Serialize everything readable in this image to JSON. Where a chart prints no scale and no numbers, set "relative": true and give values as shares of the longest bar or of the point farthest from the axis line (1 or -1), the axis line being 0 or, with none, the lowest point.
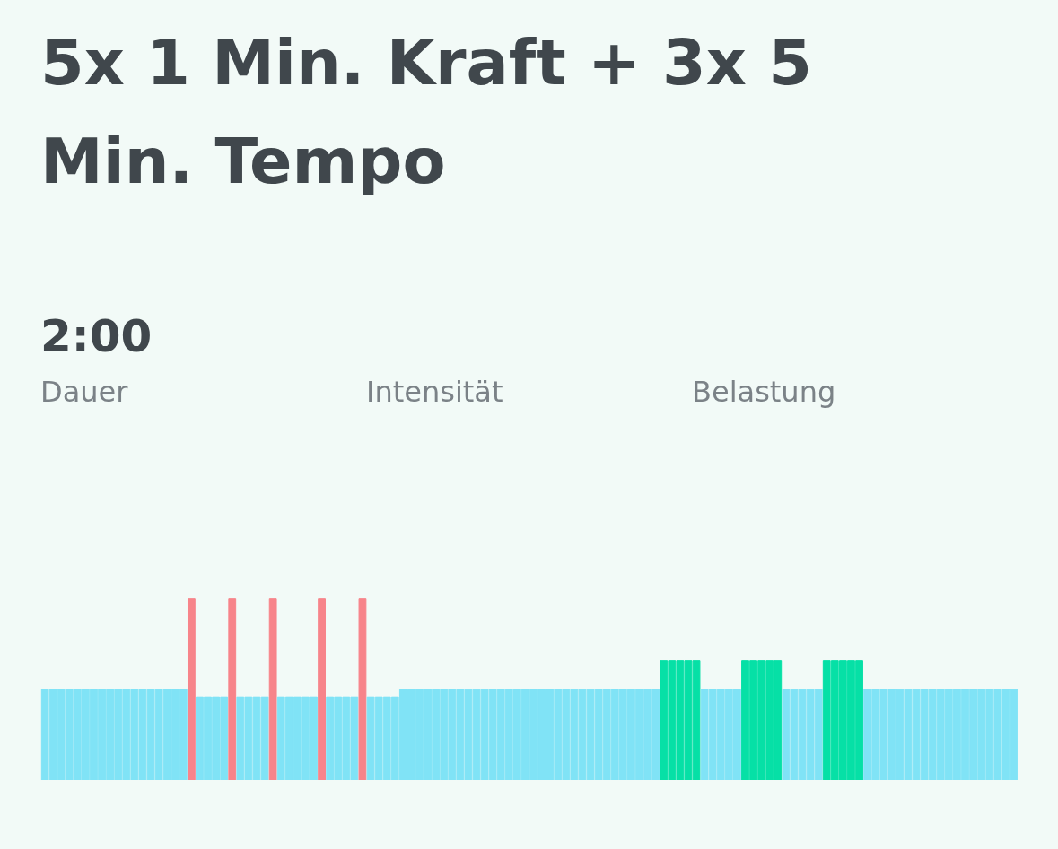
{
  "chart_data": {
    "type": "bar",
    "relative": true,
    "title": "5x 1 Min. Kraft + 3x 5 Min. Tempo",
    "annotations": [
      "2:00",
      "Dauer",
      "Intensität",
      "Belastung"
    ],
    "categories": [
      null,
      null,
      null,
      null,
      null,
      null,
      null,
      null,
      null,
      null,
      null,
      null,
      null,
      null,
      null,
      null,
      null,
      null,
      null,
      null,
      null,
      null,
      null,
      null,
      null,
      null,
      null,
      null,
      null,
      null,
      null,
      null,
      null,
      null,
      null,
      null,
      null,
      null,
      null,
      null,
      null,
      null,
      null,
      null,
      null,
      null,
      null,
      null,
      null,
      null,
      null,
      null,
      null,
      null,
      null,
      null,
      null,
      null,
      null,
      null,
      null,
      null,
      null,
      null,
      null,
      null,
      null,
      null,
      null,
      null,
      null,
      null,
      null,
      null,
      null,
      null,
      null,
      null,
      null,
      null,
      null,
      null,
      null,
      null,
      null,
      null,
      null,
      null,
      null,
      null,
      null,
      null,
      null,
      null,
      null,
      null,
      null,
      null,
      null,
      null,
      null,
      null,
      null,
      null,
      null,
      null,
      null,
      null,
      null,
      null,
      null,
      null,
      null,
      null,
      null,
      null,
      null,
      null,
      null,
      null
    ],
    "values": [
      0.5,
      0.5,
      0.5,
      0.5,
      0.5,
      0.5,
      0.5,
      0.5,
      0.5,
      0.5,
      0.5,
      0.5,
      0.5,
      0.5,
      0.5,
      0.5,
      0.5,
      0.5,
      1,
      0.46,
      0.46,
      0.46,
      0.46,
      1,
      0.46,
      0.46,
      0.46,
      0.46,
      1,
      0.46,
      0.46,
      0.46,
      0.46,
      0.46,
      1,
      0.46,
      0.46,
      0.46,
      0.46,
      1,
      0.46,
      0.46,
      0.46,
      0.46,
      0.5,
      0.5,
      0.5,
      0.5,
      0.5,
      0.5,
      0.5,
      0.5,
      0.5,
      0.5,
      0.5,
      0.5,
      0.5,
      0.5,
      0.5,
      0.5,
      0.5,
      0.5,
      0.5,
      0.5,
      0.5,
      0.5,
      0.5,
      0.5,
      0.5,
      0.5,
      0.5,
      0.5,
      0.5,
      0.5,
      0.5,
      0.5,
      0.66,
      0.66,
      0.66,
      0.66,
      0.66,
      0.5,
      0.5,
      0.5,
      0.5,
      0.5,
      0.66,
      0.66,
      0.66,
      0.66,
      0.66,
      0.5,
      0.5,
      0.5,
      0.5,
      0.5,
      0.66,
      0.66,
      0.66,
      0.66,
      0.66,
      0.5,
      0.5,
      0.5,
      0.5,
      0.5,
      0.5,
      0.5,
      0.5,
      0.5,
      0.5,
      0.5,
      0.5,
      0.5,
      0.5,
      0.5,
      0.5,
      0.5,
      0.5,
      0.5
    ],
    "colors": [
      "#80e3f6",
      "#80e3f6",
      "#80e3f6",
      "#80e3f6",
      "#80e3f6",
      "#80e3f6",
      "#80e3f6",
      "#80e3f6",
      "#80e3f6",
      "#80e3f6",
      "#80e3f6",
      "#80e3f6",
      "#80e3f6",
      "#80e3f6",
      "#80e3f6",
      "#80e3f6",
      "#80e3f6",
      "#80e3f6",
      "#f7848a",
      "#80e3f6",
      "#80e3f6",
      "#80e3f6",
      "#80e3f6",
      "#f7848a",
      "#80e3f6",
      "#80e3f6",
      "#80e3f6",
      "#80e3f6",
      "#f7848a",
      "#80e3f6",
      "#80e3f6",
      "#80e3f6",
      "#80e3f6",
      "#80e3f6",
      "#f7848a",
      "#80e3f6",
      "#80e3f6",
      "#80e3f6",
      "#80e3f6",
      "#f7848a",
      "#80e3f6",
      "#80e3f6",
      "#80e3f6",
      "#80e3f6",
      "#80e3f6",
      "#80e3f6",
      "#80e3f6",
      "#80e3f6",
      "#80e3f6",
      "#80e3f6",
      "#80e3f6",
      "#80e3f6",
      "#80e3f6",
      "#80e3f6",
      "#80e3f6",
      "#80e3f6",
      "#80e3f6",
      "#80e3f6",
      "#80e3f6",
      "#80e3f6",
      "#80e3f6",
      "#80e3f6",
      "#80e3f6",
      "#80e3f6",
      "#80e3f6",
      "#80e3f6",
      "#80e3f6",
      "#80e3f6",
      "#80e3f6",
      "#80e3f6",
      "#80e3f6",
      "#80e3f6",
      "#80e3f6",
      "#80e3f6",
      "#80e3f6",
      "#80e3f6",
      "#06e0a6",
      "#06e0a6",
      "#06e0a6",
      "#06e0a6",
      "#06e0a6",
      "#80e3f6",
      "#80e3f6",
      "#80e3f6",
      "#80e3f6",
      "#80e3f6",
      "#06e0a6",
      "#06e0a6",
      "#06e0a6",
      "#06e0a6",
      "#06e0a6",
      "#80e3f6",
      "#80e3f6",
      "#80e3f6",
      "#80e3f6",
      "#80e3f6",
      "#06e0a6",
      "#06e0a6",
      "#06e0a6",
      "#06e0a6",
      "#06e0a6",
      "#80e3f6",
      "#80e3f6",
      "#80e3f6",
      "#80e3f6",
      "#80e3f6",
      "#80e3f6",
      "#80e3f6",
      "#80e3f6",
      "#80e3f6",
      "#80e3f6",
      "#80e3f6",
      "#80e3f6",
      "#80e3f6",
      "#80e3f6",
      "#80e3f6",
      "#80e3f6",
      "#80e3f6",
      "#80e3f6",
      "#80e3f6"
    ]
  }
}
